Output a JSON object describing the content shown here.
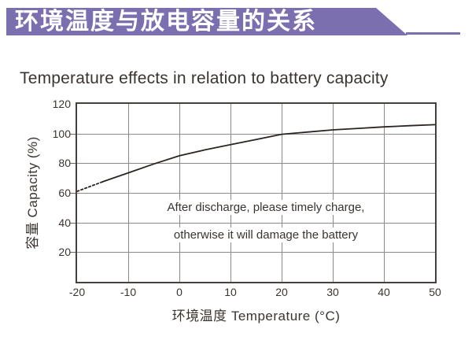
{
  "banner": {
    "title": "环境温度与放电容量的关系",
    "color": "#7B6FAF"
  },
  "title": "Temperature effects in relation to battery capacity",
  "chart_data": {
    "type": "line",
    "title": "Temperature effects in relation to battery capacity",
    "xlabel": "环境温度 Temperature (°C)",
    "ylabel": "容量 Capacity (%)",
    "xlim": [
      -20,
      50
    ],
    "ylim": [
      0,
      120
    ],
    "x_ticks": [
      -20,
      -10,
      0,
      10,
      20,
      30,
      40,
      50
    ],
    "y_ticks": [
      120,
      100,
      80,
      60,
      40,
      20
    ],
    "grid": true,
    "legend": "none",
    "series": [
      {
        "name": "capacity-vs-temperature",
        "x": [
          -20,
          -15,
          -10,
          -5,
          0,
          5,
          10,
          15,
          20,
          25,
          30,
          35,
          40,
          45,
          50
        ],
        "y": [
          61,
          67.5,
          73.5,
          79.5,
          85,
          89,
          92.5,
          96,
          99.5,
          101,
          102.5,
          103.5,
          104.5,
          105.3,
          106
        ],
        "dashed_until_x": -15,
        "color": "#2b2522"
      }
    ],
    "annotation": [
      "After discharge, please timely charge,",
      "otherwise it will damage the battery"
    ]
  },
  "colors": {
    "banner": "#7B6FAF",
    "grid": "#8d8987",
    "plot_border": "#45403d",
    "text": "#3a3430"
  }
}
